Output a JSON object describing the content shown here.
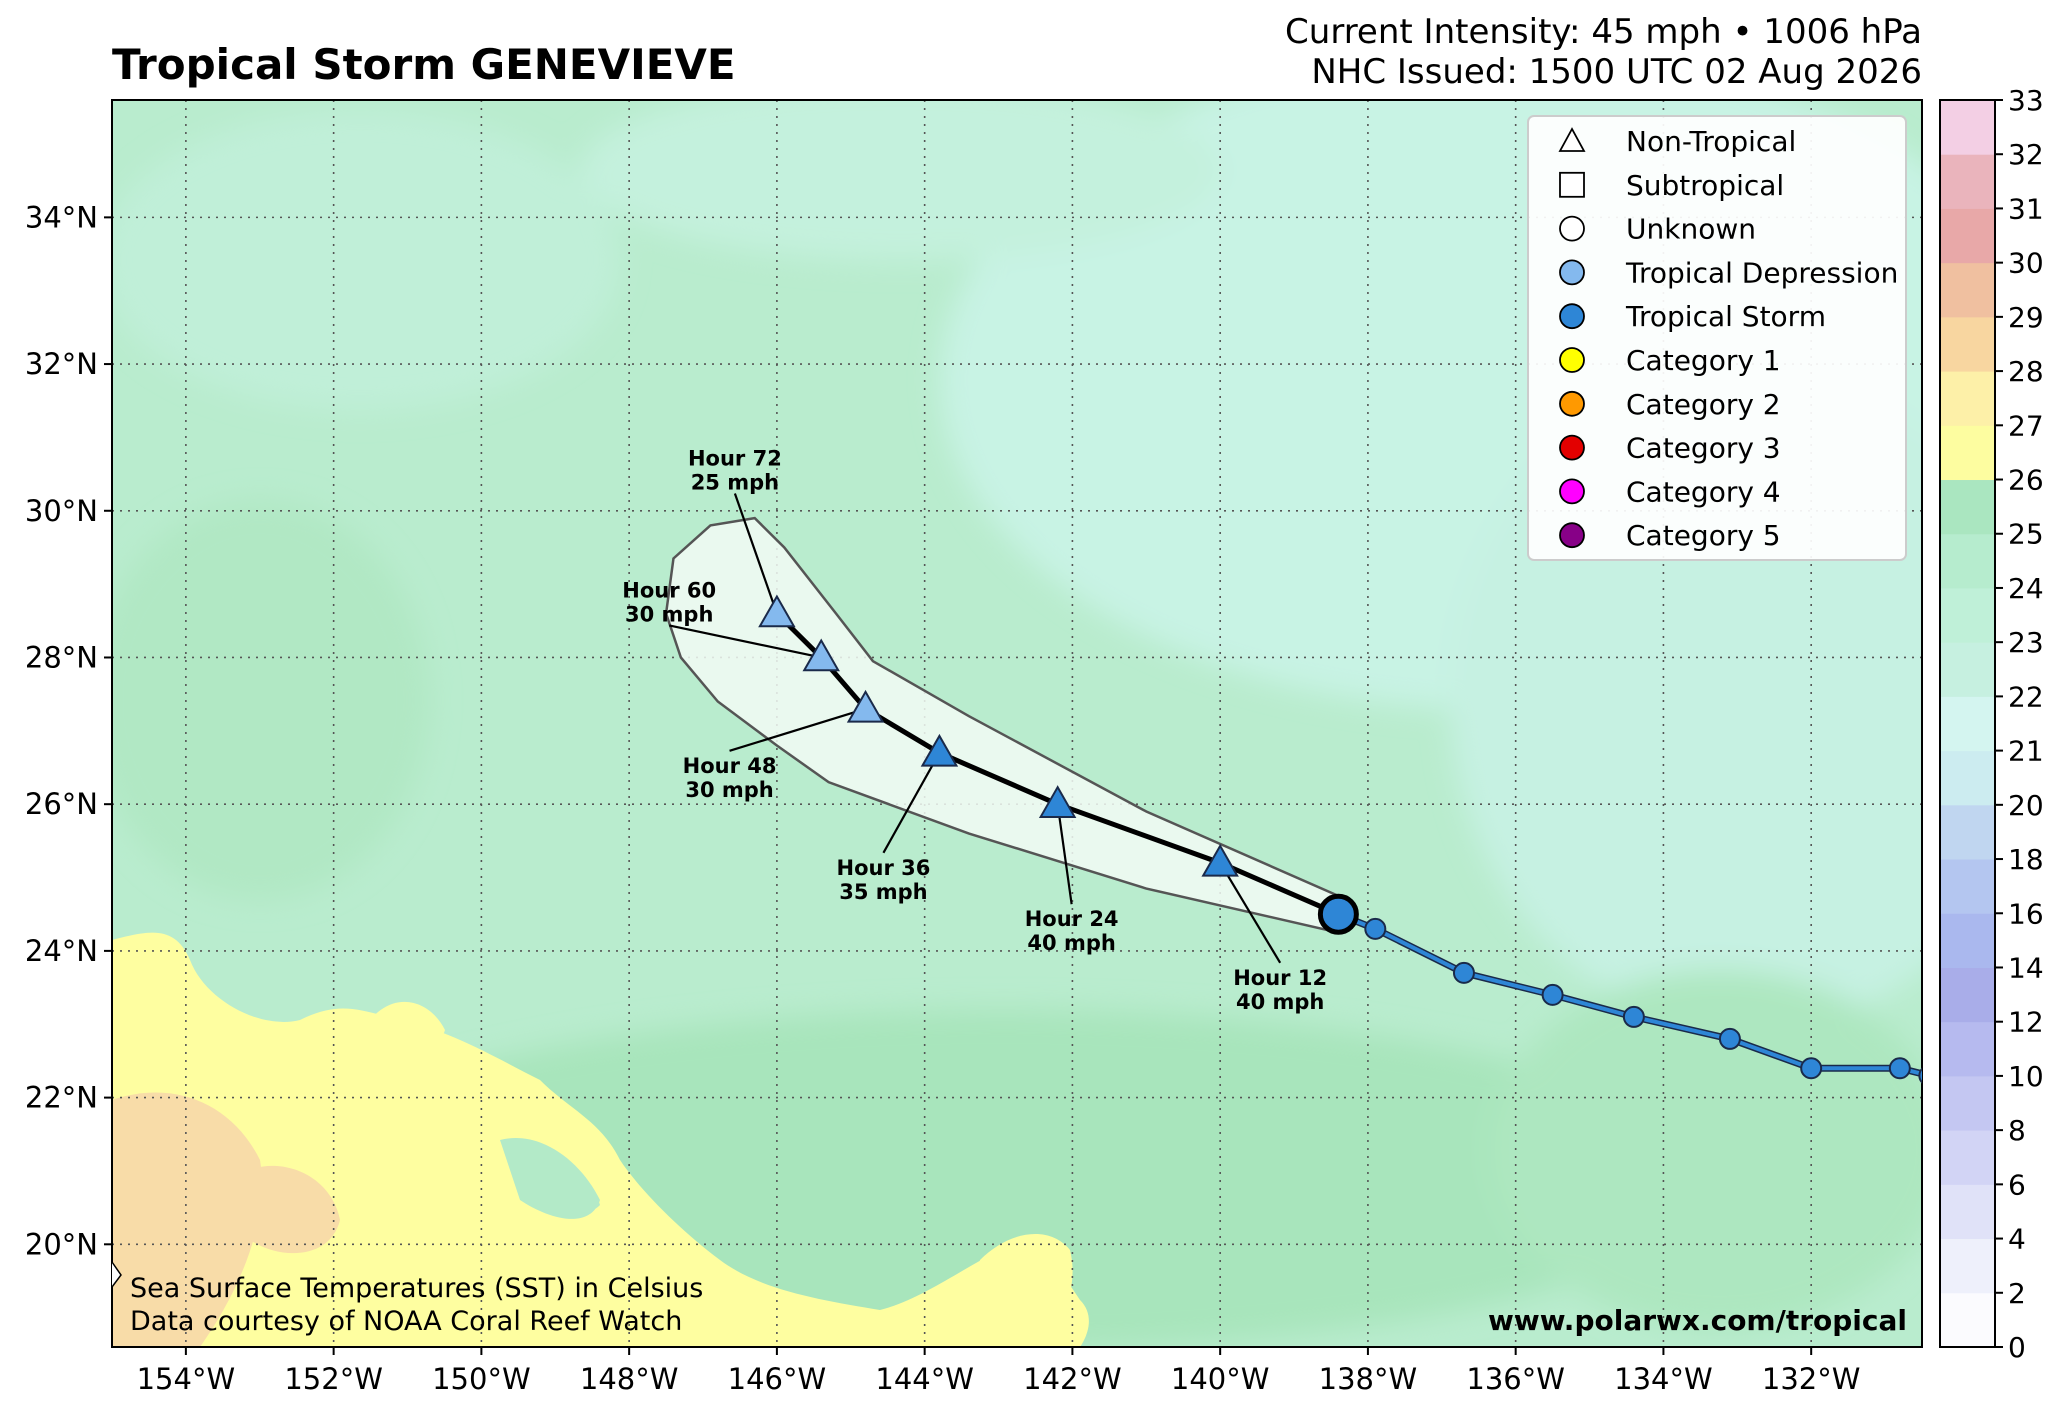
{
  "header": {
    "title": "Tropical Storm GENEVIEVE",
    "intensity": "Current Intensity: 45 mph • 1006 hPa",
    "issued": "NHC Issued: 1500 UTC 02 Aug 2026"
  },
  "credits": {
    "sst_line1": "Sea Surface Temperatures (SST) in Celsius",
    "sst_line2": "Data courtesy of NOAA Coral Reef Watch",
    "website": "www.polarwx.com/tropical"
  },
  "map": {
    "lon_range": [
      -155,
      -130.5
    ],
    "lat_range": [
      18.6,
      35.6
    ],
    "lon_ticks": [
      {
        "v": -154,
        "label": "154°W"
      },
      {
        "v": -152,
        "label": "152°W"
      },
      {
        "v": -150,
        "label": "150°W"
      },
      {
        "v": -148,
        "label": "148°W"
      },
      {
        "v": -146,
        "label": "146°W"
      },
      {
        "v": -144,
        "label": "144°W"
      },
      {
        "v": -142,
        "label": "142°W"
      },
      {
        "v": -140,
        "label": "140°W"
      },
      {
        "v": -138,
        "label": "138°W"
      },
      {
        "v": -136,
        "label": "136°W"
      },
      {
        "v": -134,
        "label": "134°W"
      },
      {
        "v": -132,
        "label": "132°W"
      }
    ],
    "lat_ticks": [
      {
        "v": 20,
        "label": "20°N"
      },
      {
        "v": 22,
        "label": "22°N"
      },
      {
        "v": 24,
        "label": "24°N"
      },
      {
        "v": 26,
        "label": "26°N"
      },
      {
        "v": 28,
        "label": "28°N"
      },
      {
        "v": 30,
        "label": "30°N"
      },
      {
        "v": 32,
        "label": "32°N"
      },
      {
        "v": 34,
        "label": "34°N"
      }
    ],
    "grid": true
  },
  "past_track": [
    [
      -130.4,
      22.3
    ],
    [
      -130.8,
      22.4
    ],
    [
      -132.0,
      22.4
    ],
    [
      -133.1,
      22.8
    ],
    [
      -134.4,
      23.1
    ],
    [
      -135.5,
      23.4
    ],
    [
      -136.7,
      23.7
    ],
    [
      -137.9,
      24.3
    ]
  ],
  "current_position": {
    "lon": -138.4,
    "lat": 24.5,
    "category": "Tropical Storm"
  },
  "forecast_points": [
    {
      "hour": "Hour 12",
      "wind": "40 mph",
      "lon": -140.0,
      "lat": 25.2,
      "category": "Tropical Storm"
    },
    {
      "hour": "Hour 24",
      "wind": "40 mph",
      "lon": -142.2,
      "lat": 26.0,
      "category": "Tropical Storm"
    },
    {
      "hour": "Hour 36",
      "wind": "35 mph",
      "lon": -143.8,
      "lat": 26.7,
      "category": "Tropical Storm"
    },
    {
      "hour": "Hour 48",
      "wind": "30 mph",
      "lon": -144.8,
      "lat": 27.3,
      "category": "Tropical Depression"
    },
    {
      "hour": "Hour 60",
      "wind": "30 mph",
      "lon": -145.4,
      "lat": 28.0,
      "category": "Tropical Depression"
    },
    {
      "hour": "Hour 72",
      "wind": "25 mph",
      "lon": -146.0,
      "lat": 28.6,
      "category": "Tropical Depression"
    }
  ],
  "cone": [
    [
      -138.4,
      24.75
    ],
    [
      -141.0,
      25.9
    ],
    [
      -143.4,
      27.2
    ],
    [
      -144.7,
      27.95
    ],
    [
      -145.2,
      28.6
    ],
    [
      -145.9,
      29.5
    ],
    [
      -146.3,
      29.9
    ],
    [
      -146.9,
      29.8
    ],
    [
      -147.4,
      29.35
    ],
    [
      -147.5,
      28.6
    ],
    [
      -147.3,
      28.0
    ],
    [
      -146.8,
      27.4
    ],
    [
      -146.0,
      26.8
    ],
    [
      -145.3,
      26.3
    ],
    [
      -143.4,
      25.6
    ],
    [
      -141.0,
      24.85
    ],
    [
      -138.4,
      24.25
    ]
  ],
  "legend": [
    {
      "label": "Non-Tropical",
      "shape": "triangle",
      "color": "#ffffff"
    },
    {
      "label": "Subtropical",
      "shape": "square",
      "color": "#ffffff"
    },
    {
      "label": "Unknown",
      "shape": "circle",
      "color": "#ffffff"
    },
    {
      "label": "Tropical Depression",
      "shape": "circle",
      "color": "#84b9ee"
    },
    {
      "label": "Tropical Storm",
      "shape": "circle",
      "color": "#2e86d6"
    },
    {
      "label": "Category 1",
      "shape": "circle",
      "color": "#ffff00"
    },
    {
      "label": "Category 2",
      "shape": "circle",
      "color": "#ff9900"
    },
    {
      "label": "Category 3",
      "shape": "circle",
      "color": "#e30000"
    },
    {
      "label": "Category 4",
      "shape": "circle",
      "color": "#ff00ff"
    },
    {
      "label": "Category 5",
      "shape": "circle",
      "color": "#870087"
    }
  ],
  "colorbar": {
    "labels": [
      "0",
      "2",
      "4",
      "6",
      "8",
      "10",
      "12",
      "14",
      "16",
      "18",
      "20",
      "21",
      "22",
      "23",
      "24",
      "25",
      "26",
      "27",
      "28",
      "29",
      "30",
      "31",
      "32",
      "33"
    ],
    "colors": [
      "#fbfbfe",
      "#eef0fb",
      "#e0e2f8",
      "#d2d4f5",
      "#c4c7f2",
      "#b6baef",
      "#a9ade9",
      "#aab8ee",
      "#b4c6f0",
      "#c0d6f0",
      "#ccecf0",
      "#d4f5f0",
      "#c6f0e0",
      "#bff0d8",
      "#b6ecce",
      "#aae6c0",
      "#fdfda0",
      "#fdf0a8",
      "#f8d6a0",
      "#f0c0a0",
      "#e8a8a8",
      "#eab4bc",
      "#f3cfe4"
    ]
  },
  "colors": {
    "tropical_depression": "#84b9ee",
    "tropical_storm": "#2e86d6",
    "land": "#fefea0"
  }
}
